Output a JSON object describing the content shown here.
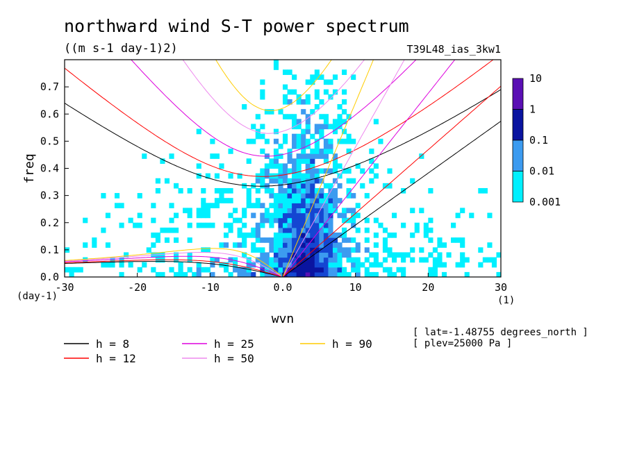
{
  "chart_data": {
    "type": "heatmap",
    "title": "northward wind S-T power spectrum",
    "subtitle": "((m s-1 day-1)2)",
    "run_label": "T39L48_ias_3kw1",
    "xlabel": "wvn",
    "ylabel": "freq",
    "x_unit": "(1)",
    "y_unit": "(day-1)",
    "xlim": [
      -30,
      30
    ],
    "ylim": [
      0,
      0.8
    ],
    "x_ticks": [
      -30,
      -20,
      -10,
      0,
      10,
      20,
      30
    ],
    "x_tick_labels": [
      "-30",
      "-20",
      "-10",
      "0.0",
      "10",
      "20",
      "30"
    ],
    "y_ticks": [
      0,
      0.1,
      0.2,
      0.3,
      0.4,
      0.5,
      0.6,
      0.7
    ],
    "y_tick_labels": [
      "0.0",
      "0.1",
      "0.2",
      "0.3",
      "0.4",
      "0.5",
      "0.6",
      "0.7"
    ],
    "colorbar": {
      "levels": [
        "10",
        "1",
        "0.1",
        "0.01",
        "0.001"
      ],
      "colors": [
        "#5a0fb4",
        "#0a14a0",
        "#1446d2",
        "#3c9bf0",
        "#00f0ff"
      ],
      "scale": "log"
    },
    "series": [
      {
        "name": "h = 8",
        "h": 8,
        "color": "#000000"
      },
      {
        "name": "h = 12",
        "h": 12,
        "color": "#ff0000"
      },
      {
        "name": "h = 25",
        "h": 25,
        "color": "#dd00dd"
      },
      {
        "name": "h = 50",
        "h": 50,
        "color": "#ee88ee"
      },
      {
        "name": "h = 90",
        "h": 90,
        "color": "#ffcc00"
      }
    ],
    "annotations": [
      "[ lat=-1.48755 degrees_north ]",
      "[ plev=25000 Pa ]"
    ]
  }
}
